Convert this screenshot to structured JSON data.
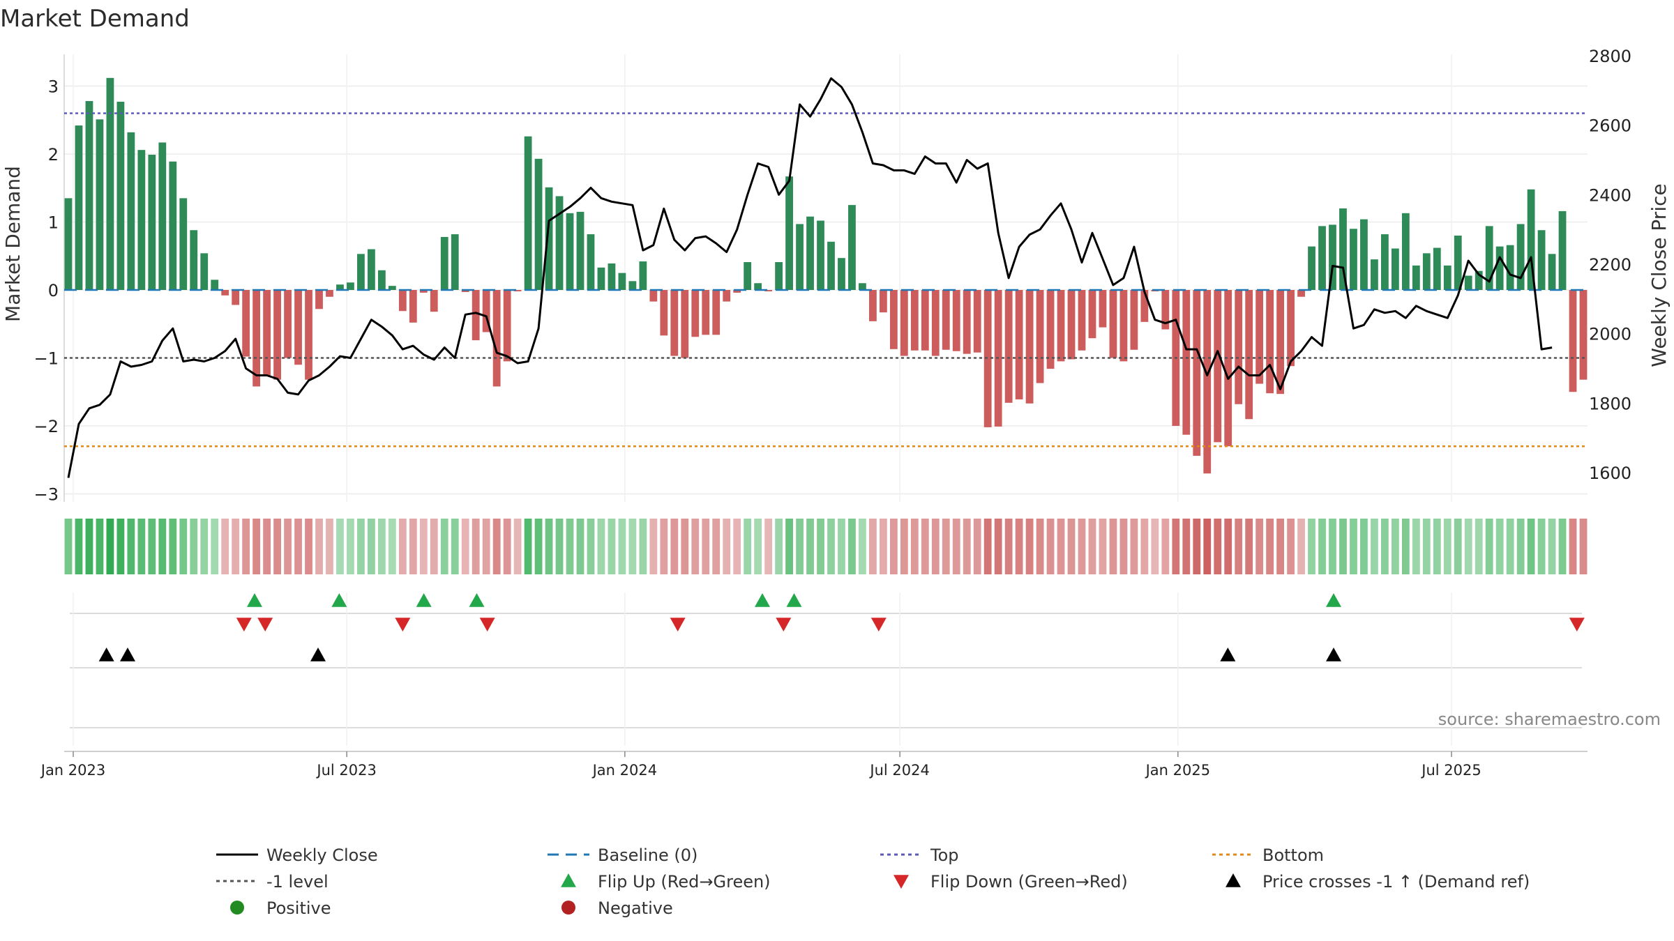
{
  "title": "Market Demand",
  "source_note": "source: sharemaestro.com",
  "colors": {
    "positive": "#2e8b57",
    "negative": "#cd5c5c",
    "flip_up": "#22a84a",
    "flip_down": "#d62728",
    "price_cross": "#000000",
    "top_line": "#5b5bb5",
    "bottom_line": "#e08a1e",
    "baseline": "#1f77b4",
    "minus_one": "#555555"
  },
  "legend": [
    {
      "label": "Weekly Close",
      "symbol": "solid-line",
      "color": "#000000"
    },
    {
      "label": "Baseline (0)",
      "symbol": "dashed-line",
      "color": "#1f77b4"
    },
    {
      "label": "Top",
      "symbol": "dotted-line",
      "color": "#5b5bb5"
    },
    {
      "label": "Bottom",
      "symbol": "dotted-line",
      "color": "#e08a1e"
    },
    {
      "label": "-1 level",
      "symbol": "dotted-line",
      "color": "#555555"
    },
    {
      "label": "Flip Up (Red→Green)",
      "symbol": "triangle-up",
      "color": "#22a84a"
    },
    {
      "label": "Flip Down (Green→Red)",
      "symbol": "triangle-down",
      "color": "#d62728"
    },
    {
      "label": "Price crosses -1 ↑ (Demand ref)",
      "symbol": "triangle-up",
      "color": "#000000"
    },
    {
      "label": "Positive",
      "symbol": "circle",
      "color": "#228b22"
    },
    {
      "label": "Negative",
      "symbol": "circle",
      "color": "#b22222"
    }
  ],
  "chart_data": {
    "type": "bar",
    "ylabel": "Market Demand",
    "y2label": "Weekly Close Price",
    "ylim": [
      -3.2,
      3.4
    ],
    "y2lim": [
      1480,
      2820
    ],
    "yticks": [
      3,
      2,
      1,
      0,
      -1,
      -2,
      -3
    ],
    "ytick_labels": [
      "3",
      "2",
      "1",
      "0",
      "−1",
      "−2",
      "−3"
    ],
    "y2ticks": [
      2800,
      2600,
      2400,
      2200,
      2000,
      1800,
      1600
    ],
    "x_start": "2022-12-26",
    "x_end": "2025-09-29",
    "x_tick_dates": [
      "2023-01-01",
      "2023-07-01",
      "2024-01-01",
      "2024-07-01",
      "2025-01-01",
      "2025-07-01"
    ],
    "x_tick_labels": [
      "Jan 2023",
      "Jul 2023",
      "Jan 2024",
      "Jul 2024",
      "Jan 2025",
      "Jul 2025"
    ],
    "reference_lines": {
      "top": 2.6,
      "bottom": -2.3,
      "minus_one": -1,
      "baseline": 0
    },
    "grid": true,
    "legend_position": "bottom",
    "demand": [
      1.35,
      2.42,
      2.78,
      2.51,
      3.12,
      2.77,
      2.32,
      2.06,
      1.99,
      2.17,
      1.89,
      1.35,
      0.88,
      0.54,
      0.15,
      -0.08,
      -0.22,
      -0.98,
      -1.42,
      -1.27,
      -1.32,
      -1.0,
      -1.1,
      -1.32,
      -0.28,
      -0.1,
      0.08,
      0.11,
      0.53,
      0.6,
      0.29,
      0.06,
      -0.31,
      -0.48,
      -0.04,
      -0.32,
      0.78,
      0.82,
      -0.03,
      -0.74,
      -0.62,
      -1.42,
      -1.05,
      -0.02,
      2.26,
      1.93,
      1.51,
      1.38,
      1.13,
      1.15,
      0.82,
      0.33,
      0.39,
      0.25,
      0.13,
      0.42,
      -0.17,
      -0.67,
      -0.97,
      -1.0,
      -0.69,
      -0.66,
      -0.66,
      -0.17,
      -0.04,
      0.41,
      0.1,
      -0.02,
      0.41,
      1.67,
      0.97,
      1.08,
      1.02,
      0.71,
      0.47,
      1.25,
      0.1,
      -0.46,
      -0.33,
      -0.87,
      -0.97,
      -0.89,
      -0.89,
      -0.97,
      -0.88,
      -0.9,
      -0.94,
      -0.92,
      -2.02,
      -2.01,
      -1.66,
      -1.61,
      -1.67,
      -1.37,
      -1.16,
      -1.05,
      -1.02,
      -0.89,
      -0.71,
      -0.55,
      -1.0,
      -1.05,
      -0.88,
      -0.47,
      -0.02,
      -0.58,
      -2.0,
      -2.13,
      -2.44,
      -2.7,
      -2.24,
      -2.3,
      -1.68,
      -1.9,
      -1.38,
      -1.52,
      -1.53,
      -1.12,
      -0.1,
      0.64,
      0.94,
      0.96,
      1.2,
      0.9,
      1.04,
      0.45,
      0.82,
      0.61,
      1.13,
      0.36,
      0.54,
      0.62,
      0.36,
      0.8,
      0.21,
      0.28,
      0.94,
      0.64,
      0.66,
      0.97,
      1.48,
      0.88,
      0.53,
      1.16,
      -1.5,
      -1.32
    ],
    "weekly_close": [
      1585,
      1740,
      1785,
      1795,
      1825,
      1920,
      1905,
      1910,
      1920,
      1980,
      2015,
      1920,
      1925,
      1920,
      1930,
      1950,
      1985,
      1900,
      1880,
      1880,
      1870,
      1830,
      1825,
      1865,
      1880,
      1905,
      1935,
      1930,
      1985,
      2040,
      2020,
      1995,
      1955,
      1965,
      1940,
      1925,
      1960,
      1930,
      2055,
      2060,
      2050,
      1945,
      1935,
      1915,
      1920,
      2015,
      2325,
      2345,
      2365,
      2390,
      2420,
      2390,
      2380,
      2375,
      2370,
      2240,
      2255,
      2360,
      2270,
      2240,
      2275,
      2280,
      2260,
      2235,
      2300,
      2400,
      2490,
      2480,
      2400,
      2440,
      2660,
      2625,
      2675,
      2735,
      2710,
      2660,
      2580,
      2490,
      2485,
      2470,
      2470,
      2460,
      2510,
      2490,
      2490,
      2435,
      2500,
      2475,
      2490,
      2290,
      2160,
      2250,
      2285,
      2300,
      2340,
      2375,
      2300,
      2205,
      2290,
      2215,
      2140,
      2160,
      2250,
      2120,
      2040,
      2030,
      2040,
      1955,
      1955,
      1880,
      1950,
      1870,
      1905,
      1880,
      1880,
      1910,
      1840,
      1920,
      1950,
      1990,
      1965,
      2195,
      2190,
      2015,
      2025,
      2070,
      2060,
      2065,
      2045,
      2080,
      2065,
      2055,
      2045,
      2110,
      2210,
      2170,
      2150,
      2220,
      2170,
      2160,
      2220,
      1955,
      1960
    ]
  },
  "flip_up_dates": [
    "2023-05-01",
    "2023-06-26",
    "2023-08-21",
    "2023-09-25",
    "2024-04-01",
    "2024-04-22",
    "2025-04-14"
  ],
  "flip_down_dates": [
    "2023-04-24",
    "2023-05-08",
    "2023-08-07",
    "2023-10-02",
    "2024-02-05",
    "2024-04-15",
    "2024-06-17",
    "2025-09-22"
  ],
  "price_cross_dates": [
    "2023-01-23",
    "2023-02-06",
    "2023-06-12",
    "2025-02-03",
    "2025-04-14"
  ]
}
